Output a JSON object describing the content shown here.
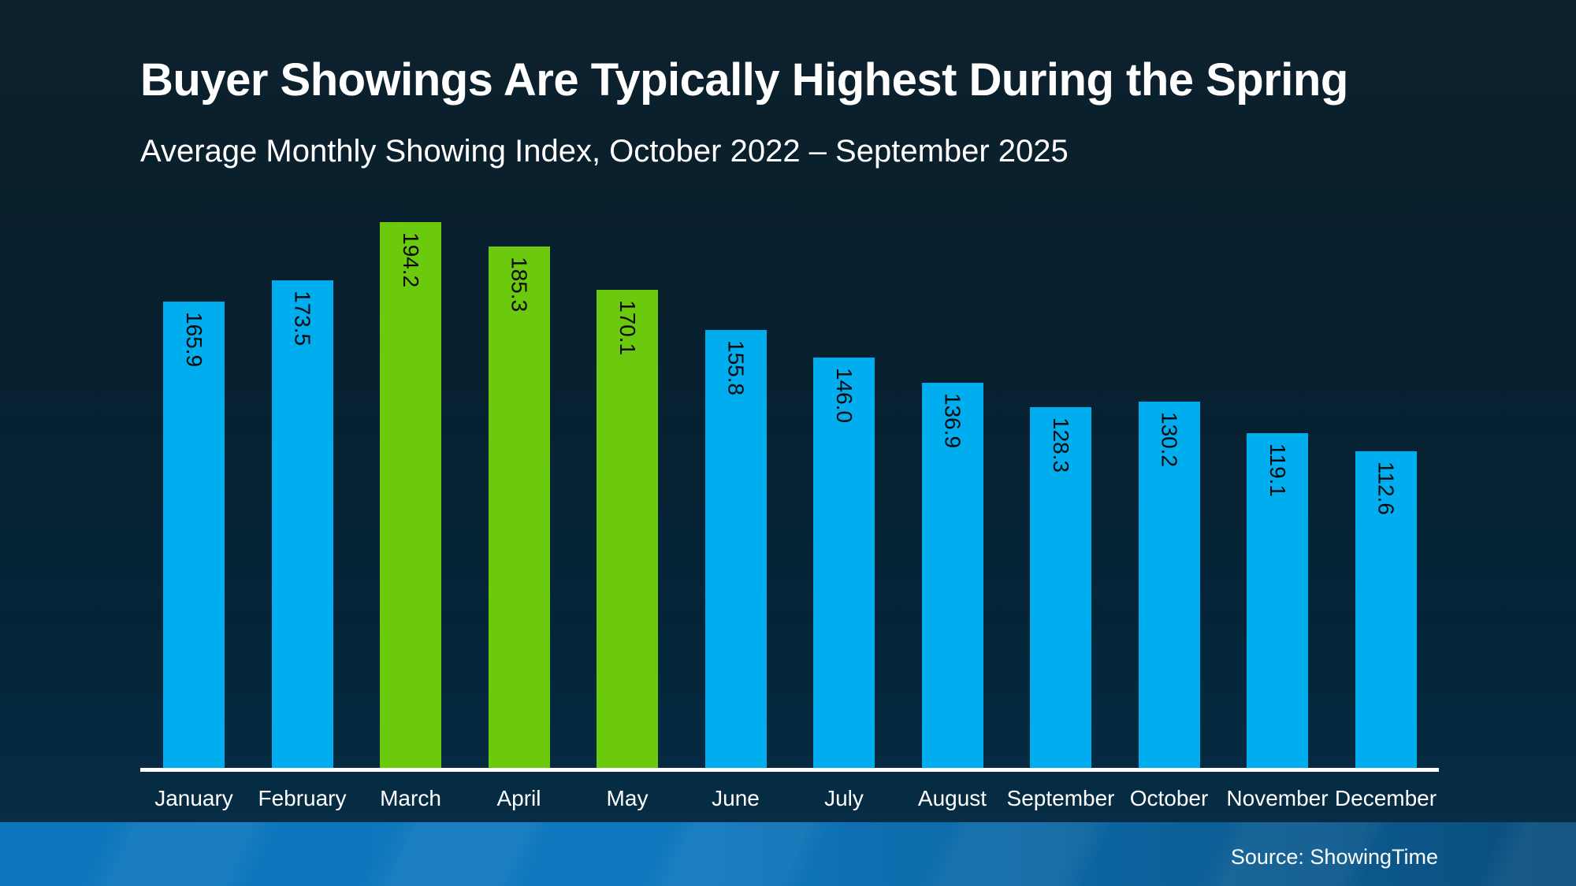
{
  "chart_data": {
    "type": "bar",
    "title": "Buyer Showings Are Typically Highest During the Spring",
    "subtitle": "Average Monthly Showing Index, October 2022 – September 2025",
    "categories": [
      "January",
      "February",
      "March",
      "April",
      "May",
      "June",
      "July",
      "August",
      "September",
      "October",
      "November",
      "December"
    ],
    "values": [
      165.9,
      173.5,
      194.2,
      185.3,
      170.1,
      155.8,
      146.0,
      136.9,
      128.3,
      130.2,
      119.1,
      112.6
    ],
    "value_label_decimals": 1,
    "highlighted_categories": [
      "March",
      "April",
      "May"
    ],
    "ylim": [
      0,
      200
    ],
    "grid": false,
    "legend": false,
    "xlabel": "",
    "ylabel": "",
    "colors": {
      "bar_default": "#00ADEF",
      "bar_highlight": "#6BC90E",
      "value_label": "#0A0A0A",
      "axis_line": "#FFFFFF",
      "title_text": "#FFFFFF",
      "month_label_text": "#FFFFFF"
    }
  },
  "footer": {
    "source_label": "Source: ShowingTime"
  }
}
